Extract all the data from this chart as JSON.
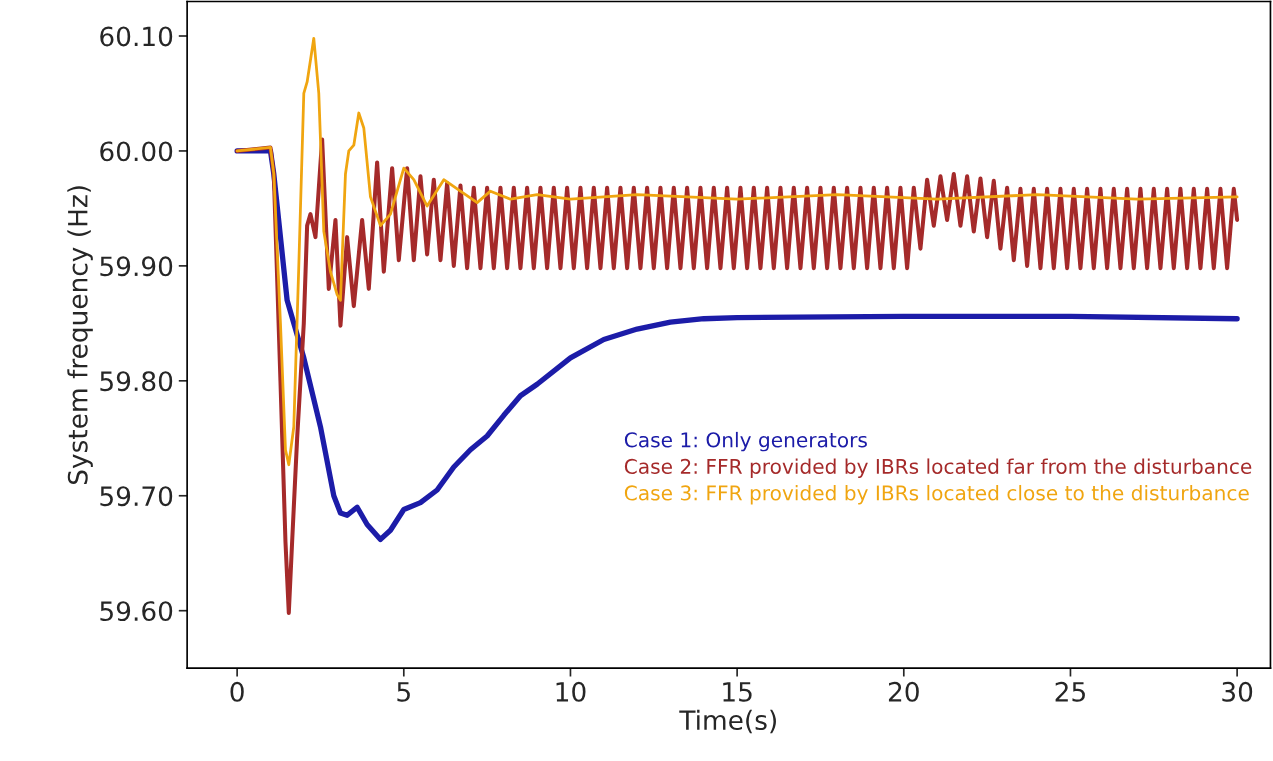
{
  "chart_data": {
    "type": "line",
    "xlabel": "Time(s)",
    "ylabel": "System frequency (Hz)",
    "xlim": [
      -1.5,
      31
    ],
    "xticks": [
      0,
      5,
      10,
      15,
      20,
      25,
      30
    ],
    "ylim": [
      59.55,
      60.13
    ],
    "yticks": [
      {
        "value": 59.6,
        "label": "59.60"
      },
      {
        "value": 59.7,
        "label": "59.70"
      },
      {
        "value": 59.8,
        "label": "59.80"
      },
      {
        "value": 59.9,
        "label": "59.90"
      },
      {
        "value": 60.0,
        "label": "60.00"
      },
      {
        "value": 60.1,
        "label": "60.10"
      }
    ],
    "grid": false,
    "legend": "right",
    "marker": "none",
    "line_style": "solid",
    "series": [
      {
        "name": "Case 1: Only generators",
        "color": "#1c1ca8",
        "x": [
          0,
          1.0,
          1.1,
          1.5,
          2.0,
          2.5,
          2.9,
          3.1,
          3.3,
          3.6,
          3.9,
          4.3,
          4.6,
          5.0,
          5.5,
          6.0,
          6.5,
          7.0,
          7.5,
          8.0,
          8.5,
          9.0,
          10.0,
          11.0,
          12.0,
          13.0,
          14.0,
          15.0,
          20.0,
          25.0,
          30.0
        ],
        "values": [
          60.0,
          60.0,
          59.98,
          59.87,
          59.82,
          59.76,
          59.7,
          59.685,
          59.683,
          59.69,
          59.675,
          59.662,
          59.67,
          59.688,
          59.694,
          59.705,
          59.725,
          59.74,
          59.752,
          59.77,
          59.787,
          59.797,
          59.82,
          59.836,
          59.845,
          59.851,
          59.854,
          59.855,
          59.856,
          59.856,
          59.854
        ]
      },
      {
        "name": "Case 2: FFR provided by IBRs located far from the disturbance",
        "color": "#a52a2a",
        "x": [
          0,
          1.0,
          1.1,
          1.3,
          1.45,
          1.55,
          1.65,
          1.8,
          1.9,
          2.0,
          2.1,
          2.2,
          2.35,
          2.55,
          2.75,
          2.95,
          3.1,
          3.3,
          3.5,
          3.75,
          3.95,
          4.2,
          4.4,
          4.65,
          4.85,
          5.1,
          5.3,
          5.5,
          5.7,
          5.9,
          6.1,
          6.3,
          6.5,
          6.7,
          6.9,
          7.1,
          7.3,
          7.5,
          7.7,
          7.9,
          8.1,
          8.3,
          8.5,
          8.7,
          8.9,
          9.1,
          9.3,
          9.5,
          9.7,
          9.9,
          10.1,
          10.3,
          10.5,
          10.7,
          10.9,
          11.1,
          11.3,
          11.5,
          11.7,
          11.9,
          12.1,
          12.3,
          12.5,
          12.7,
          12.9,
          13.1,
          13.3,
          13.5,
          13.7,
          13.9,
          14.1,
          14.3,
          14.5,
          14.7,
          14.9,
          15.1,
          15.3,
          15.5,
          15.7,
          15.9,
          16.1,
          16.3,
          16.5,
          16.7,
          16.9,
          17.1,
          17.3,
          17.5,
          17.7,
          17.9,
          18.1,
          18.3,
          18.5,
          18.7,
          18.9,
          19.1,
          19.3,
          19.5,
          19.7,
          19.9,
          20.1,
          20.3,
          20.5,
          20.7,
          20.9,
          21.1,
          21.3,
          21.5,
          21.7,
          21.9,
          22.1,
          22.3,
          22.5,
          22.7,
          22.9,
          23.1,
          23.3,
          23.5,
          23.7,
          23.9,
          24.1,
          24.3,
          24.5,
          24.7,
          24.9,
          25.1,
          25.3,
          25.5,
          25.7,
          25.9,
          26.1,
          26.3,
          26.5,
          26.7,
          26.9,
          27.1,
          27.3,
          27.5,
          27.7,
          27.9,
          28.1,
          28.3,
          28.5,
          28.7,
          28.9,
          29.1,
          29.3,
          29.5,
          29.7,
          29.9,
          30.0
        ],
        "values": [
          60.0,
          60.003,
          59.98,
          59.8,
          59.66,
          59.598,
          59.66,
          59.75,
          59.8,
          59.85,
          59.935,
          59.945,
          59.925,
          60.01,
          59.88,
          59.94,
          59.848,
          59.925,
          59.865,
          59.94,
          59.88,
          59.99,
          59.895,
          59.985,
          59.905,
          59.985,
          59.905,
          59.978,
          59.91,
          59.975,
          59.905,
          59.972,
          59.9,
          59.97,
          59.898,
          59.968,
          59.898,
          59.968,
          59.898,
          59.968,
          59.898,
          59.968,
          59.898,
          59.968,
          59.898,
          59.968,
          59.898,
          59.968,
          59.898,
          59.968,
          59.898,
          59.968,
          59.898,
          59.968,
          59.898,
          59.968,
          59.898,
          59.968,
          59.898,
          59.968,
          59.898,
          59.968,
          59.898,
          59.968,
          59.898,
          59.968,
          59.898,
          59.968,
          59.898,
          59.968,
          59.898,
          59.968,
          59.898,
          59.968,
          59.898,
          59.968,
          59.898,
          59.968,
          59.898,
          59.968,
          59.898,
          59.968,
          59.898,
          59.968,
          59.898,
          59.968,
          59.898,
          59.968,
          59.898,
          59.968,
          59.898,
          59.968,
          59.898,
          59.968,
          59.898,
          59.968,
          59.898,
          59.968,
          59.898,
          59.968,
          59.898,
          59.968,
          59.915,
          59.975,
          59.935,
          59.978,
          59.94,
          59.98,
          59.935,
          59.978,
          59.93,
          59.976,
          59.925,
          59.974,
          59.915,
          59.968,
          59.905,
          59.967,
          59.9,
          59.967,
          59.898,
          59.967,
          59.898,
          59.967,
          59.898,
          59.967,
          59.898,
          59.967,
          59.898,
          59.967,
          59.898,
          59.967,
          59.898,
          59.967,
          59.898,
          59.967,
          59.898,
          59.967,
          59.898,
          59.967,
          59.898,
          59.967,
          59.898,
          59.967,
          59.898,
          59.967,
          59.898,
          59.967,
          59.898,
          59.967,
          59.94
        ]
      },
      {
        "name": "Case 3: FFR provided by IBRs located close to the disturbance",
        "color": "#f0a510",
        "x": [
          0,
          1.0,
          1.1,
          1.3,
          1.45,
          1.55,
          1.7,
          1.85,
          2.0,
          2.1,
          2.3,
          2.45,
          2.6,
          2.8,
          3.0,
          3.1,
          3.25,
          3.35,
          3.5,
          3.65,
          3.8,
          4.0,
          4.3,
          4.6,
          5.0,
          5.3,
          5.7,
          6.2,
          6.7,
          7.2,
          7.6,
          8.2,
          9.0,
          10.0,
          12.0,
          15.0,
          18.0,
          21.0,
          24.0,
          27.0,
          30.0
        ],
        "values": [
          60.0,
          60.003,
          59.98,
          59.85,
          59.74,
          59.727,
          59.76,
          59.9,
          60.05,
          60.06,
          60.098,
          60.05,
          59.93,
          59.895,
          59.875,
          59.87,
          59.98,
          60.0,
          60.005,
          60.033,
          60.02,
          59.96,
          59.935,
          59.945,
          59.985,
          59.975,
          59.952,
          59.975,
          59.965,
          59.955,
          59.965,
          59.958,
          59.962,
          59.958,
          59.962,
          59.958,
          59.962,
          59.958,
          59.962,
          59.958,
          59.96
        ]
      }
    ]
  }
}
